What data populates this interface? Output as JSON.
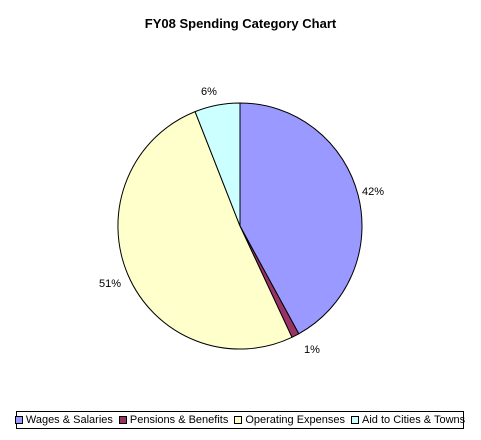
{
  "chart_data": {
    "type": "pie",
    "title": "FY08 Spending Category Chart",
    "categories": [
      "Wages & Salaries",
      "Pensions & Benefits",
      "Operating Expenses",
      "Aid to Cities & Towns"
    ],
    "values": [
      42,
      1,
      51,
      6
    ],
    "labels": [
      "42%",
      "1%",
      "51%",
      "6%"
    ],
    "colors": [
      "#9999ff",
      "#993366",
      "#ffffcc",
      "#ccffff"
    ],
    "legend_position": "bottom"
  }
}
